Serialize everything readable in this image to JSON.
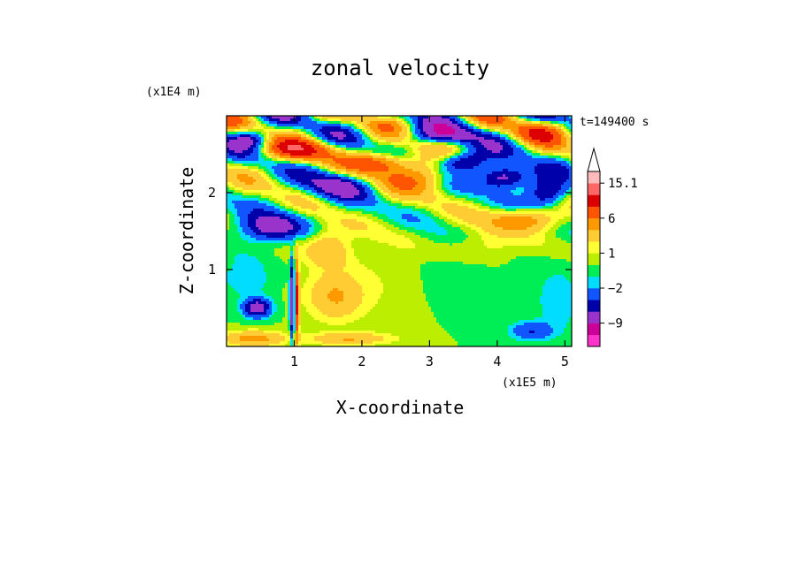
{
  "chart_data": {
    "type": "heatmap",
    "title": "zonal velocity",
    "time_label": "t=149400 s",
    "xlabel": "X-coordinate",
    "ylabel": "Z-coordinate",
    "x_unit": "(x1E5 m)",
    "y_unit": "(x1E4 m)",
    "xlim": [
      0,
      5.1
    ],
    "ylim": [
      0,
      3.0
    ],
    "x_ticks": [
      {
        "value": 1,
        "label": "1"
      },
      {
        "value": 2,
        "label": "2"
      },
      {
        "value": 3,
        "label": "3"
      },
      {
        "value": 4,
        "label": "4"
      },
      {
        "value": 5,
        "label": "5"
      }
    ],
    "y_ticks": [
      {
        "value": 1,
        "label": "1"
      },
      {
        "value": 2,
        "label": "2"
      }
    ],
    "colorbar": {
      "levels": [
        -15,
        -12,
        -9,
        -6,
        -4,
        -2,
        -1,
        0,
        1,
        2,
        4,
        6,
        9,
        12,
        15.1
      ],
      "colors": [
        "#ff33cc",
        "#cc0099",
        "#9933cc",
        "#0000aa",
        "#1155ff",
        "#00ddff",
        "#00ee55",
        "#bbee00",
        "#ffff33",
        "#ffcc33",
        "#ff9900",
        "#ff5500",
        "#dd0000",
        "#ff6666",
        "#ffbbbb"
      ],
      "extend_max": true,
      "labels": [
        {
          "value": 15.1,
          "label": "15.1"
        },
        {
          "value": 6,
          "label": "6"
        },
        {
          "value": 1,
          "label": "1"
        },
        {
          "value": -2,
          "label": "−2"
        },
        {
          "value": -9,
          "label": "−9"
        }
      ]
    },
    "field_features": [
      {
        "x": 0.65,
        "z": 1.55,
        "sx": 0.45,
        "sz": 0.18,
        "value": -8
      },
      {
        "x": 0.35,
        "z": 2.7,
        "sx": 0.3,
        "sz": 0.12,
        "value": -6
      },
      {
        "x": 1.1,
        "z": 2.55,
        "sx": 0.55,
        "sz": 0.14,
        "value": 8
      },
      {
        "x": 1.65,
        "z": 2.1,
        "sx": 0.45,
        "sz": 0.18,
        "value": -7
      },
      {
        "x": 2.3,
        "z": 2.4,
        "sx": 0.45,
        "sz": 0.13,
        "value": 7
      },
      {
        "x": 2.8,
        "z": 2.25,
        "sx": 0.7,
        "sz": 0.22,
        "value": 6
      },
      {
        "x": 3.45,
        "z": 2.4,
        "sx": 0.4,
        "sz": 0.15,
        "value": -10
      },
      {
        "x": 3.2,
        "z": 2.75,
        "sx": 0.6,
        "sz": 0.12,
        "value": -6
      },
      {
        "x": 4.1,
        "z": 2.2,
        "sx": 0.35,
        "sz": 0.15,
        "value": -11
      },
      {
        "x": 4.75,
        "z": 2.0,
        "sx": 0.3,
        "sz": 0.18,
        "value": -8
      },
      {
        "x": 4.6,
        "z": 2.8,
        "sx": 0.4,
        "sz": 0.15,
        "value": 6
      },
      {
        "x": 4.4,
        "z": 1.65,
        "sx": 0.55,
        "sz": 0.15,
        "value": 6
      },
      {
        "x": 3.8,
        "z": 1.3,
        "sx": 0.5,
        "sz": 0.2,
        "value": 2
      },
      {
        "x": 3.3,
        "z": 0.9,
        "sx": 0.7,
        "sz": 0.45,
        "value": -1
      },
      {
        "x": 2.4,
        "z": 0.85,
        "sx": 0.8,
        "sz": 0.55,
        "value": 1
      },
      {
        "x": 0.45,
        "z": 0.5,
        "sx": 0.2,
        "sz": 0.12,
        "value": -8
      },
      {
        "x": 0.4,
        "z": 0.1,
        "sx": 0.45,
        "sz": 0.1,
        "value": 5
      },
      {
        "x": 0.98,
        "z": 0.6,
        "sx": 0.04,
        "sz": 0.5,
        "value": -12
      },
      {
        "x": 1.03,
        "z": 0.6,
        "sx": 0.04,
        "sz": 0.5,
        "value": 12
      },
      {
        "x": 1.6,
        "z": 0.65,
        "sx": 0.4,
        "sz": 0.3,
        "value": 4
      },
      {
        "x": 1.5,
        "z": 1.3,
        "sx": 0.35,
        "sz": 0.25,
        "value": 4
      },
      {
        "x": 0.3,
        "z": 0.9,
        "sx": 0.35,
        "sz": 0.25,
        "value": -2
      },
      {
        "x": 4.9,
        "z": 0.6,
        "sx": 0.3,
        "sz": 0.4,
        "value": -2
      },
      {
        "x": 4.5,
        "z": 0.2,
        "sx": 0.3,
        "sz": 0.12,
        "value": -4
      },
      {
        "x": 1.8,
        "z": 0.1,
        "sx": 0.6,
        "sz": 0.08,
        "value": 4
      }
    ]
  }
}
